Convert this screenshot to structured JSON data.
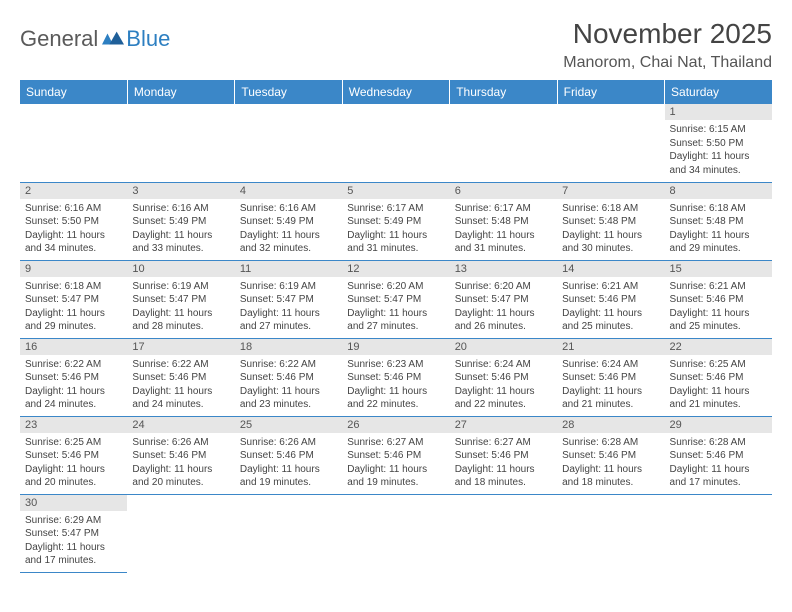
{
  "logo": {
    "part1": "General",
    "part2": "Blue"
  },
  "title": "November 2025",
  "location": "Manorom, Chai Nat, Thailand",
  "colors": {
    "header_bg": "#3b87c8",
    "header_fg": "#ffffff",
    "daynum_bg": "#e6e6e6",
    "border": "#3b87c8",
    "logo_gray": "#5a5a5a",
    "logo_blue": "#2d7fc1"
  },
  "weekdays": [
    "Sunday",
    "Monday",
    "Tuesday",
    "Wednesday",
    "Thursday",
    "Friday",
    "Saturday"
  ],
  "days": {
    "1": {
      "sunrise": "6:15 AM",
      "sunset": "5:50 PM",
      "daylight": "11 hours and 34 minutes."
    },
    "2": {
      "sunrise": "6:16 AM",
      "sunset": "5:50 PM",
      "daylight": "11 hours and 34 minutes."
    },
    "3": {
      "sunrise": "6:16 AM",
      "sunset": "5:49 PM",
      "daylight": "11 hours and 33 minutes."
    },
    "4": {
      "sunrise": "6:16 AM",
      "sunset": "5:49 PM",
      "daylight": "11 hours and 32 minutes."
    },
    "5": {
      "sunrise": "6:17 AM",
      "sunset": "5:49 PM",
      "daylight": "11 hours and 31 minutes."
    },
    "6": {
      "sunrise": "6:17 AM",
      "sunset": "5:48 PM",
      "daylight": "11 hours and 31 minutes."
    },
    "7": {
      "sunrise": "6:18 AM",
      "sunset": "5:48 PM",
      "daylight": "11 hours and 30 minutes."
    },
    "8": {
      "sunrise": "6:18 AM",
      "sunset": "5:48 PM",
      "daylight": "11 hours and 29 minutes."
    },
    "9": {
      "sunrise": "6:18 AM",
      "sunset": "5:47 PM",
      "daylight": "11 hours and 29 minutes."
    },
    "10": {
      "sunrise": "6:19 AM",
      "sunset": "5:47 PM",
      "daylight": "11 hours and 28 minutes."
    },
    "11": {
      "sunrise": "6:19 AM",
      "sunset": "5:47 PM",
      "daylight": "11 hours and 27 minutes."
    },
    "12": {
      "sunrise": "6:20 AM",
      "sunset": "5:47 PM",
      "daylight": "11 hours and 27 minutes."
    },
    "13": {
      "sunrise": "6:20 AM",
      "sunset": "5:47 PM",
      "daylight": "11 hours and 26 minutes."
    },
    "14": {
      "sunrise": "6:21 AM",
      "sunset": "5:46 PM",
      "daylight": "11 hours and 25 minutes."
    },
    "15": {
      "sunrise": "6:21 AM",
      "sunset": "5:46 PM",
      "daylight": "11 hours and 25 minutes."
    },
    "16": {
      "sunrise": "6:22 AM",
      "sunset": "5:46 PM",
      "daylight": "11 hours and 24 minutes."
    },
    "17": {
      "sunrise": "6:22 AM",
      "sunset": "5:46 PM",
      "daylight": "11 hours and 24 minutes."
    },
    "18": {
      "sunrise": "6:22 AM",
      "sunset": "5:46 PM",
      "daylight": "11 hours and 23 minutes."
    },
    "19": {
      "sunrise": "6:23 AM",
      "sunset": "5:46 PM",
      "daylight": "11 hours and 22 minutes."
    },
    "20": {
      "sunrise": "6:24 AM",
      "sunset": "5:46 PM",
      "daylight": "11 hours and 22 minutes."
    },
    "21": {
      "sunrise": "6:24 AM",
      "sunset": "5:46 PM",
      "daylight": "11 hours and 21 minutes."
    },
    "22": {
      "sunrise": "6:25 AM",
      "sunset": "5:46 PM",
      "daylight": "11 hours and 21 minutes."
    },
    "23": {
      "sunrise": "6:25 AM",
      "sunset": "5:46 PM",
      "daylight": "11 hours and 20 minutes."
    },
    "24": {
      "sunrise": "6:26 AM",
      "sunset": "5:46 PM",
      "daylight": "11 hours and 20 minutes."
    },
    "25": {
      "sunrise": "6:26 AM",
      "sunset": "5:46 PM",
      "daylight": "11 hours and 19 minutes."
    },
    "26": {
      "sunrise": "6:27 AM",
      "sunset": "5:46 PM",
      "daylight": "11 hours and 19 minutes."
    },
    "27": {
      "sunrise": "6:27 AM",
      "sunset": "5:46 PM",
      "daylight": "11 hours and 18 minutes."
    },
    "28": {
      "sunrise": "6:28 AM",
      "sunset": "5:46 PM",
      "daylight": "11 hours and 18 minutes."
    },
    "29": {
      "sunrise": "6:28 AM",
      "sunset": "5:46 PM",
      "daylight": "11 hours and 17 minutes."
    },
    "30": {
      "sunrise": "6:29 AM",
      "sunset": "5:47 PM",
      "daylight": "11 hours and 17 minutes."
    }
  },
  "layout": {
    "first_weekday_index": 6,
    "num_days": 30,
    "labels": {
      "sunrise": "Sunrise:",
      "sunset": "Sunset:",
      "daylight": "Daylight:"
    }
  }
}
